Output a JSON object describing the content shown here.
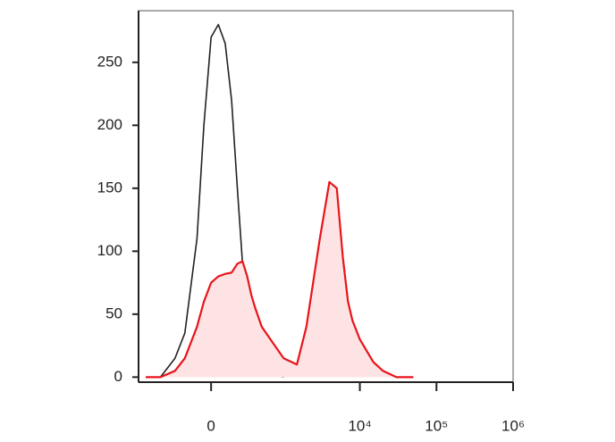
{
  "chart_data": {
    "type": "histogram-overlay",
    "xscale": "asinh",
    "x": [
      -800,
      -500,
      -300,
      -200,
      -100,
      -50,
      0,
      50,
      100,
      150,
      200,
      250,
      300,
      350,
      400,
      500,
      700,
      1000,
      1500,
      2000,
      3000,
      4000,
      5000,
      6000,
      7000,
      8000,
      10000,
      15000,
      20000,
      30000,
      50000
    ],
    "series": [
      {
        "color": "#222222",
        "fill": "none",
        "values": [
          0,
          0,
          15,
          35,
          110,
          200,
          270,
          280,
          265,
          220,
          150,
          90,
          50,
          30,
          20,
          12,
          4,
          0,
          null,
          null,
          null,
          null,
          null,
          null,
          null,
          null,
          null,
          null,
          null,
          null,
          null
        ]
      },
      {
        "color": "#e8141a",
        "fill": "#fde3e4",
        "values": [
          0,
          0,
          5,
          15,
          40,
          60,
          75,
          80,
          82,
          83,
          90,
          92,
          80,
          65,
          55,
          40,
          28,
          15,
          10,
          40,
          110,
          155,
          150,
          95,
          60,
          45,
          30,
          12,
          5,
          0,
          0
        ]
      }
    ],
    "xlim": [
      -1000,
      1000000
    ],
    "xticks": [
      0,
      {
        "value": 10000,
        "label": "10⁴"
      },
      {
        "value": 100000,
        "label": "10⁵"
      },
      {
        "value": 1000000,
        "label": "10⁶"
      }
    ],
    "ylim": [
      -4,
      291
    ],
    "yticks": [
      0,
      50,
      100,
      150,
      200,
      250
    ]
  }
}
